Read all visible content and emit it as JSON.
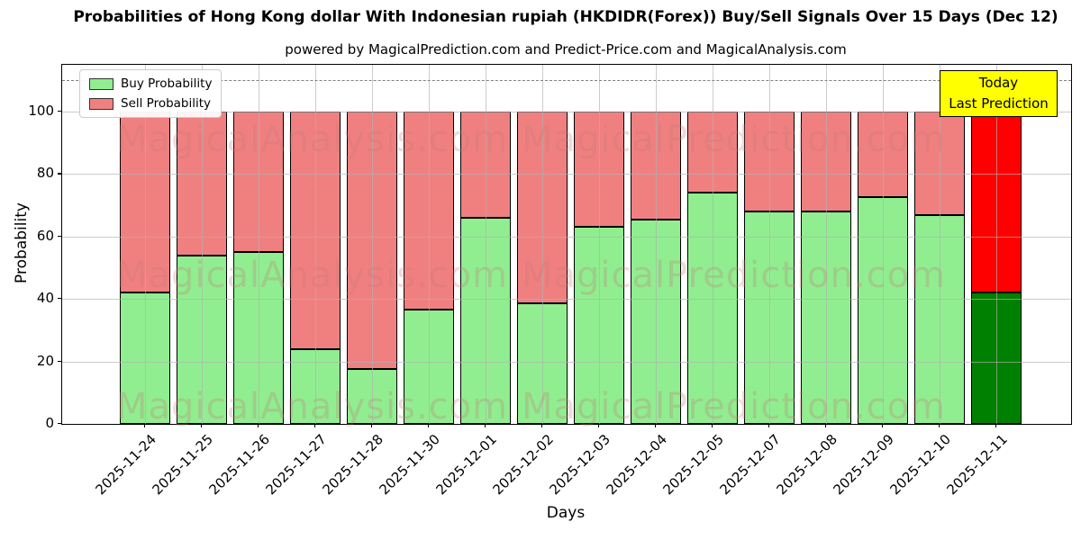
{
  "title": "Probabilities of Hong Kong dollar With Indonesian rupiah (HKDIDR(Forex)) Buy/Sell Signals Over 15 Days (Dec 12)",
  "subtitle": "powered by MagicalPrediction.com and Predict-Price.com and MagicalAnalysis.com",
  "legend": {
    "buy_label": "Buy Probability",
    "sell_label": "Sell Probability"
  },
  "annotation": {
    "line1": "Today",
    "line2": "Last Prediction"
  },
  "watermarks": {
    "left": "MagicalAnalysis.com",
    "right": "MagicalPrediction.com"
  },
  "colors": {
    "buy": "#90ee90",
    "sell": "#f08080",
    "buy_today": "#008000",
    "sell_today": "#ff0000",
    "bar_edge": "#000000",
    "grid": "#b0b0b0",
    "dashed_line": "#808080",
    "annotation_bg": "#ffff00",
    "watermark": "#c87878",
    "legend_border": "#cccccc"
  },
  "chart_data": {
    "type": "bar",
    "stacked": true,
    "title": "Probabilities of Hong Kong dollar With Indonesian rupiah (HKDIDR(Forex)) Buy/Sell Signals Over 15 Days (Dec 12)",
    "xlabel": "Days",
    "ylabel": "Probability",
    "categories": [
      "2025-11-24",
      "2025-11-25",
      "2025-11-26",
      "2025-11-27",
      "2025-11-28",
      "2025-11-30",
      "2025-12-01",
      "2025-12-02",
      "2025-12-03",
      "2025-12-04",
      "2025-12-05",
      "2025-12-07",
      "2025-12-08",
      "2025-12-09",
      "2025-12-10",
      "2025-12-11"
    ],
    "series": [
      {
        "name": "Buy Probability",
        "values": [
          42,
          54,
          55,
          24,
          17.5,
          36.5,
          66,
          38.5,
          63,
          65.5,
          74,
          68,
          68,
          72.5,
          67,
          42
        ]
      },
      {
        "name": "Sell Probability",
        "values": [
          58,
          46,
          45,
          76,
          82.5,
          63.5,
          34,
          61.5,
          37,
          34.5,
          26,
          32,
          32,
          27.5,
          33,
          58
        ]
      }
    ],
    "yticks": [
      0,
      20,
      40,
      60,
      80,
      100
    ],
    "ylim": [
      0,
      115
    ],
    "dashed_line_y": 110,
    "grid": true,
    "legend_position": "upper left",
    "today_index": 15
  }
}
